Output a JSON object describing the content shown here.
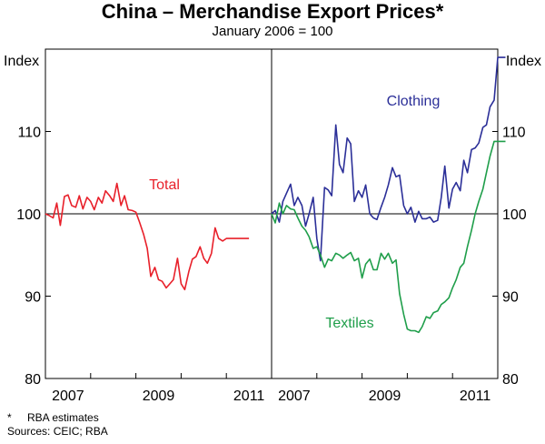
{
  "title": "China – Merchandise Export Prices*",
  "subtitle": "January 2006 = 100",
  "footnote": {
    "star": "*",
    "note": "RBA estimates",
    "sources": "Sources: CEIC; RBA"
  },
  "colors": {
    "total": "#e8202a",
    "clothing": "#2b2f98",
    "textiles": "#1f9e4a",
    "grid": "#000000"
  },
  "chart_data": [
    {
      "type": "line",
      "panel": "left",
      "ylabel": "Index",
      "ylim": [
        80,
        120
      ],
      "yticks": [
        80,
        90,
        100,
        110
      ],
      "xlim": [
        2006.0,
        2011.0
      ],
      "xticks": [
        "2007",
        "2009",
        "2011"
      ],
      "series": [
        {
          "name": "Total",
          "color_key": "total",
          "x": [
            2006.0,
            2006.08,
            2006.17,
            2006.25,
            2006.33,
            2006.42,
            2006.5,
            2006.58,
            2006.67,
            2006.75,
            2006.83,
            2006.92,
            2007.0,
            2007.08,
            2007.17,
            2007.25,
            2007.33,
            2007.42,
            2007.5,
            2007.58,
            2007.67,
            2007.75,
            2007.83,
            2007.92,
            2008.0,
            2008.08,
            2008.17,
            2008.25,
            2008.33,
            2008.42,
            2008.5,
            2008.58,
            2008.67,
            2008.75,
            2008.83,
            2008.92,
            2009.0,
            2009.08,
            2009.17,
            2009.25,
            2009.33,
            2009.42,
            2009.5,
            2009.58,
            2009.67,
            2009.75,
            2009.83,
            2009.92,
            2010.0,
            2010.08,
            2010.17,
            2010.25,
            2010.33,
            2010.42,
            2010.5
          ],
          "values": [
            100.0,
            99.8,
            99.5,
            101.3,
            98.6,
            102.1,
            102.3,
            101.0,
            100.8,
            102.2,
            100.6,
            102.0,
            101.5,
            100.5,
            102.0,
            101.3,
            102.8,
            102.2,
            101.5,
            103.7,
            101.0,
            102.2,
            100.5,
            100.4,
            100.2,
            99.0,
            97.5,
            95.8,
            92.4,
            93.5,
            92.0,
            91.8,
            91.0,
            91.5,
            92.0,
            94.6,
            91.5,
            90.8,
            93.0,
            94.5,
            94.8,
            96.0,
            94.6,
            94.0,
            95.2,
            98.3,
            97.0,
            96.7,
            97.0,
            97.0,
            97.0,
            97.0,
            97.0,
            97.0,
            97.0
          ]
        }
      ],
      "labels": [
        {
          "series": "Total",
          "text": "Total"
        }
      ]
    },
    {
      "type": "line",
      "panel": "right",
      "ylabel": "Index",
      "ylim": [
        80,
        120
      ],
      "yticks": [
        80,
        90,
        100,
        110
      ],
      "xlim": [
        2006.0,
        2011.0
      ],
      "xticks": [
        "2007",
        "2009",
        "2011"
      ],
      "series": [
        {
          "name": "Clothing",
          "color_key": "clothing",
          "x": [
            2006.0,
            2006.08,
            2006.17,
            2006.25,
            2006.33,
            2006.42,
            2006.5,
            2006.58,
            2006.67,
            2006.75,
            2006.83,
            2006.92,
            2007.0,
            2007.08,
            2007.17,
            2007.25,
            2007.33,
            2007.42,
            2007.5,
            2007.58,
            2007.67,
            2007.75,
            2007.83,
            2007.92,
            2008.0,
            2008.08,
            2008.17,
            2008.25,
            2008.33,
            2008.42,
            2008.5,
            2008.58,
            2008.67,
            2008.75,
            2008.83,
            2008.92,
            2009.0,
            2009.08,
            2009.17,
            2009.25,
            2009.33,
            2009.42,
            2009.5,
            2009.58,
            2009.67,
            2009.75,
            2009.83,
            2009.92,
            2010.0,
            2010.08,
            2010.17,
            2010.25,
            2010.33,
            2010.42,
            2010.5,
            2010.58,
            2010.67,
            2010.75,
            2010.83,
            2010.92,
            2011.0,
            2011.08,
            2011.17
          ],
          "values": [
            100.0,
            100.4,
            99.0,
            101.5,
            102.5,
            103.6,
            101.0,
            102.0,
            101.0,
            98.5,
            100.0,
            102.0,
            97.0,
            94.3,
            103.2,
            102.9,
            102.2,
            110.8,
            106.0,
            105.0,
            109.2,
            108.5,
            101.5,
            102.8,
            102.0,
            103.5,
            100.0,
            99.5,
            99.3,
            100.8,
            102.0,
            103.5,
            105.6,
            104.5,
            104.7,
            101.0,
            100.0,
            100.8,
            99.0,
            100.3,
            99.4,
            99.4,
            99.6,
            99.0,
            99.2,
            102.0,
            105.8,
            100.7,
            103.0,
            103.8,
            102.8,
            106.5,
            105.0,
            107.8,
            108.0,
            108.6,
            110.5,
            110.8,
            113.0,
            113.8,
            119.0,
            119.0,
            119.0
          ]
        },
        {
          "name": "Textiles",
          "color_key": "textiles",
          "x": [
            2006.0,
            2006.08,
            2006.17,
            2006.25,
            2006.33,
            2006.42,
            2006.5,
            2006.58,
            2006.67,
            2006.75,
            2006.83,
            2006.92,
            2007.0,
            2007.08,
            2007.17,
            2007.25,
            2007.33,
            2007.42,
            2007.5,
            2007.58,
            2007.67,
            2007.75,
            2007.83,
            2007.92,
            2008.0,
            2008.08,
            2008.17,
            2008.25,
            2008.33,
            2008.42,
            2008.5,
            2008.58,
            2008.67,
            2008.75,
            2008.83,
            2008.92,
            2009.0,
            2009.08,
            2009.17,
            2009.25,
            2009.33,
            2009.42,
            2009.5,
            2009.58,
            2009.67,
            2009.75,
            2009.83,
            2009.92,
            2010.0,
            2010.08,
            2010.17,
            2010.25,
            2010.33,
            2010.42,
            2010.5,
            2010.58,
            2010.67,
            2010.75,
            2010.83,
            2010.92,
            2011.0,
            2011.08,
            2011.17
          ],
          "values": [
            100.0,
            98.9,
            101.3,
            100.0,
            101.0,
            100.6,
            100.5,
            99.5,
            98.5,
            98.0,
            97.2,
            95.8,
            96.0,
            95.0,
            93.5,
            94.5,
            94.3,
            95.2,
            95.0,
            94.6,
            95.0,
            95.3,
            94.3,
            94.6,
            92.2,
            93.9,
            94.5,
            93.2,
            93.2,
            95.2,
            94.5,
            95.2,
            94.0,
            94.4,
            90.3,
            87.8,
            86.0,
            85.8,
            85.8,
            85.6,
            86.3,
            87.5,
            87.3,
            88.0,
            88.2,
            89.0,
            89.3,
            89.8,
            91.0,
            92.0,
            93.5,
            94.0,
            96.0,
            98.0,
            100.0,
            101.5,
            103.0,
            105.0,
            107.0,
            108.8,
            108.8,
            108.8,
            108.8
          ]
        }
      ],
      "labels": [
        {
          "series": "Clothing",
          "text": "Clothing"
        },
        {
          "series": "Textiles",
          "text": "Textiles"
        }
      ]
    }
  ]
}
